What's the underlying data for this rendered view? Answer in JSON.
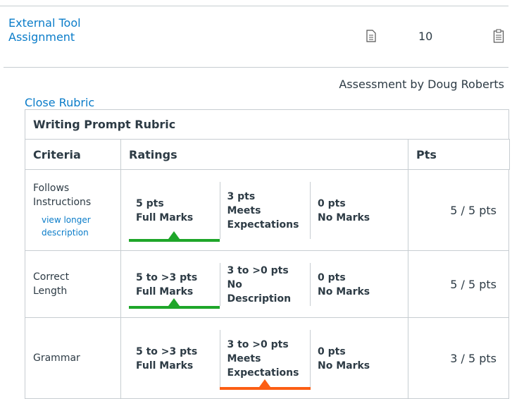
{
  "header": {
    "assignment_link": "External Tool Assignment",
    "points": "10"
  },
  "assessment_by": "Assessment by Doug Roberts",
  "close_rubric": "Close Rubric",
  "rubric": {
    "title": "Writing Prompt Rubric",
    "columns": [
      "Criteria",
      "Ratings",
      "Pts"
    ],
    "rows": [
      {
        "criterion": "Follows Instructions",
        "link": "view longer description",
        "ratings": [
          {
            "points": "5 pts",
            "description": "Full Marks"
          },
          {
            "points": "3 pts",
            "description": "Meets Expectations"
          },
          {
            "points": "0 pts",
            "description": "No Marks"
          }
        ],
        "selected": 0,
        "selected_color": "#1ea629",
        "score": "5 / 5 pts"
      },
      {
        "criterion": "Correct Length",
        "ratings": [
          {
            "points": "5 to >3 pts",
            "description": "Full Marks"
          },
          {
            "points": "3 to >0 pts",
            "description": "No Description"
          },
          {
            "points": "0 pts",
            "description": "No Marks"
          }
        ],
        "selected": 0,
        "selected_color": "#1ea629",
        "score": "5 / 5 pts"
      },
      {
        "criterion": "Grammar",
        "ratings": [
          {
            "points": "5 to >3 pts",
            "description": "Full Marks"
          },
          {
            "points": "3 to >0 pts",
            "description": "Meets Expectations"
          },
          {
            "points": "0 pts",
            "description": "No Marks"
          }
        ],
        "selected": 1,
        "selected_color": "#fc5e13",
        "score": "3 / 5 pts"
      }
    ]
  }
}
